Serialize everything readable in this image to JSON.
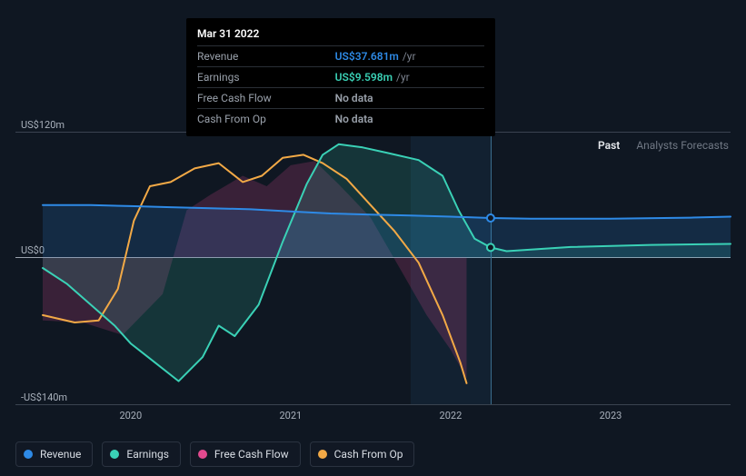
{
  "chart": {
    "type": "area-line",
    "background_color": "#0f1722",
    "grid_color": "#3a4350",
    "zero_line_color": "#9aa3ae",
    "label_color": "#a9b1bc",
    "label_fontsize": 11,
    "y": {
      "min": -140,
      "max": 120,
      "ticks": [
        {
          "v": 120,
          "label": "US$120m"
        },
        {
          "v": 0,
          "label": "US$0"
        },
        {
          "v": -140,
          "label": "-US$140m"
        }
      ],
      "unit": "US$m"
    },
    "x": {
      "ticks": [
        {
          "t": 2020,
          "label": "2020"
        },
        {
          "t": 2021,
          "label": "2021"
        },
        {
          "t": 2022,
          "label": "2022"
        },
        {
          "t": 2023,
          "label": "2023"
        }
      ],
      "domain_past": [
        2019.45,
        2022.25
      ],
      "domain_future": [
        2022.25,
        2023.75
      ],
      "domain_full": [
        2019.45,
        2023.75
      ]
    },
    "tabs": {
      "past": "Past",
      "forecast": "Analysts Forecasts",
      "active": "past"
    },
    "series": [
      {
        "id": "revenue",
        "label": "Revenue",
        "color": "#2e8ae6",
        "fill_opacity": 0.18,
        "line_width": 2,
        "data": [
          [
            2019.45,
            50
          ],
          [
            2019.75,
            50
          ],
          [
            2020.0,
            49
          ],
          [
            2020.25,
            48
          ],
          [
            2020.5,
            47
          ],
          [
            2020.75,
            46
          ],
          [
            2021.0,
            44
          ],
          [
            2021.25,
            42
          ],
          [
            2021.5,
            41
          ],
          [
            2021.75,
            40
          ],
          [
            2022.0,
            39
          ],
          [
            2022.25,
            37.681
          ],
          [
            2022.5,
            37
          ],
          [
            2023.0,
            37
          ],
          [
            2023.5,
            38
          ],
          [
            2023.75,
            39
          ]
        ]
      },
      {
        "id": "earnings",
        "label": "Earnings",
        "color": "#3ad1b6",
        "fill_opacity": 0.16,
        "line_width": 2,
        "data": [
          [
            2019.45,
            -10
          ],
          [
            2019.6,
            -25
          ],
          [
            2019.75,
            -45
          ],
          [
            2019.9,
            -65
          ],
          [
            2020.0,
            -82
          ],
          [
            2020.15,
            -100
          ],
          [
            2020.3,
            -118
          ],
          [
            2020.45,
            -95
          ],
          [
            2020.55,
            -65
          ],
          [
            2020.65,
            -75
          ],
          [
            2020.8,
            -45
          ],
          [
            2020.95,
            15
          ],
          [
            2021.1,
            70
          ],
          [
            2021.2,
            98
          ],
          [
            2021.3,
            108
          ],
          [
            2021.45,
            105
          ],
          [
            2021.6,
            100
          ],
          [
            2021.8,
            93
          ],
          [
            2021.95,
            78
          ],
          [
            2022.05,
            45
          ],
          [
            2022.15,
            18
          ],
          [
            2022.25,
            9.598
          ],
          [
            2022.35,
            6
          ],
          [
            2022.75,
            10
          ],
          [
            2023.25,
            12
          ],
          [
            2023.75,
            13
          ]
        ]
      },
      {
        "id": "free_cash_flow",
        "label": "Free Cash Flow",
        "color": "#e24a8f",
        "fill_opacity": 0.2,
        "line_width": 0,
        "data": [
          [
            2019.45,
            -60
          ],
          [
            2019.7,
            -62
          ],
          [
            2019.95,
            -74
          ],
          [
            2020.2,
            -35
          ],
          [
            2020.35,
            45
          ],
          [
            2020.5,
            60
          ],
          [
            2020.7,
            78
          ],
          [
            2020.85,
            68
          ],
          [
            2021.0,
            88
          ],
          [
            2021.15,
            92
          ],
          [
            2021.3,
            70
          ],
          [
            2021.5,
            38
          ],
          [
            2021.7,
            -15
          ],
          [
            2021.85,
            -55
          ],
          [
            2022.0,
            -88
          ],
          [
            2022.1,
            -115
          ]
        ]
      },
      {
        "id": "cash_from_op",
        "label": "Cash From Op",
        "color": "#f2a946",
        "fill_opacity": 0.0,
        "line_width": 2,
        "data": [
          [
            2019.45,
            -55
          ],
          [
            2019.65,
            -62
          ],
          [
            2019.8,
            -60
          ],
          [
            2019.92,
            -30
          ],
          [
            2020.02,
            35
          ],
          [
            2020.12,
            68
          ],
          [
            2020.25,
            72
          ],
          [
            2020.4,
            85
          ],
          [
            2020.55,
            90
          ],
          [
            2020.7,
            72
          ],
          [
            2020.82,
            78
          ],
          [
            2020.95,
            95
          ],
          [
            2021.08,
            98
          ],
          [
            2021.2,
            90
          ],
          [
            2021.35,
            75
          ],
          [
            2021.5,
            50
          ],
          [
            2021.65,
            25
          ],
          [
            2021.8,
            -5
          ],
          [
            2021.95,
            -55
          ],
          [
            2022.06,
            -100
          ],
          [
            2022.1,
            -120
          ]
        ]
      }
    ],
    "hover": {
      "t": 2022.25,
      "band_width_years": 0.5,
      "markers": [
        {
          "series": "revenue",
          "v": 37.681
        },
        {
          "series": "earnings",
          "v": 9.598
        }
      ]
    }
  },
  "tooltip": {
    "date": "Mar 31 2022",
    "rows": [
      {
        "label": "Revenue",
        "value": "US$37.681m",
        "unit": "/yr",
        "color": "#2e8ae6"
      },
      {
        "label": "Earnings",
        "value": "US$9.598m",
        "unit": "/yr",
        "color": "#3ad1b6"
      },
      {
        "label": "Free Cash Flow",
        "value": "No data",
        "unit": "",
        "color": "#99a0aa"
      },
      {
        "label": "Cash From Op",
        "value": "No data",
        "unit": "",
        "color": "#99a0aa"
      }
    ]
  },
  "legend": [
    {
      "id": "revenue",
      "label": "Revenue",
      "color": "#2e8ae6"
    },
    {
      "id": "earnings",
      "label": "Earnings",
      "color": "#3ad1b6"
    },
    {
      "id": "free_cash_flow",
      "label": "Free Cash Flow",
      "color": "#e24a8f"
    },
    {
      "id": "cash_from_op",
      "label": "Cash From Op",
      "color": "#f2a946"
    }
  ]
}
